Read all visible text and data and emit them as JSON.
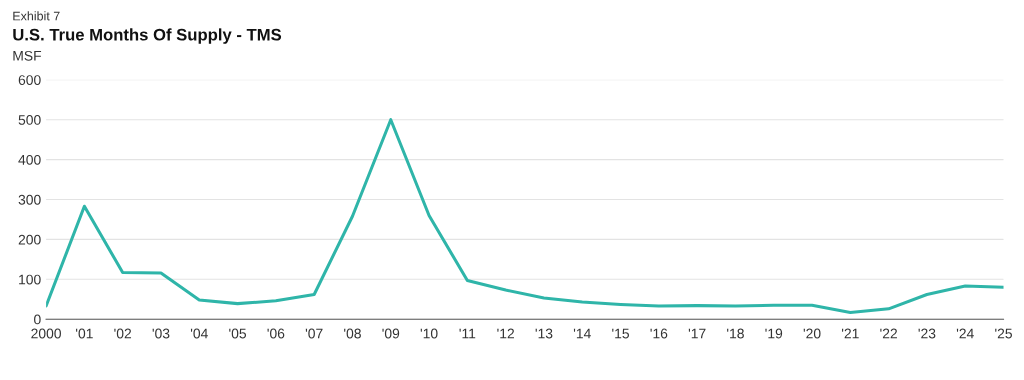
{
  "chart_data": {
    "type": "line",
    "subtitle": "Exhibit 7",
    "title": "U.S. True Months Of Supply - TMS",
    "ylabel": "MSF",
    "categories": [
      "2000",
      "'01",
      "'02",
      "'03",
      "'04",
      "'05",
      "'06",
      "'07",
      "'08",
      "'09",
      "'10",
      "'11",
      "'12",
      "'13",
      "'14",
      "'15",
      "'16",
      "'17",
      "'18",
      "'19",
      "'20",
      "'21",
      "'22",
      "'23",
      "'24",
      "'25"
    ],
    "series": [
      {
        "color": "#2fb5a9",
        "values": [
          33,
          283,
          117,
          116,
          48,
          39,
          46,
          62,
          258,
          500,
          260,
          97,
          73,
          53,
          43,
          37,
          33,
          34,
          33,
          35,
          35,
          17,
          26,
          62,
          83,
          80
        ]
      }
    ],
    "ylim": [
      0,
      600
    ],
    "yticks": [
      0,
      100,
      200,
      300,
      400,
      500,
      600
    ],
    "grid": "y",
    "legend": false,
    "marker": "none",
    "line_style": "solid"
  }
}
